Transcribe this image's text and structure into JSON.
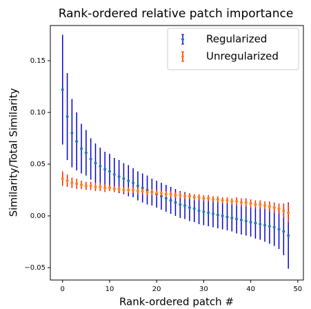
{
  "chart_data": {
    "type": "errorbar",
    "title": "Rank-ordered relative patch importance",
    "xlabel": "Rank-ordered patch #",
    "ylabel": "Similarity/Total Similarity",
    "x": [
      0,
      1,
      2,
      3,
      4,
      5,
      6,
      7,
      8,
      9,
      10,
      11,
      12,
      13,
      14,
      15,
      16,
      17,
      18,
      19,
      20,
      21,
      22,
      23,
      24,
      25,
      26,
      27,
      28,
      29,
      30,
      31,
      32,
      33,
      34,
      35,
      36,
      37,
      38,
      39,
      40,
      41,
      42,
      43,
      44,
      45,
      46,
      47,
      48
    ],
    "series": [
      {
        "name": "Regularized",
        "color": "#0000cc",
        "marker_color": "#1f77b4",
        "values": [
          0.122,
          0.096,
          0.08,
          0.072,
          0.065,
          0.061,
          0.055,
          0.051,
          0.048,
          0.045,
          0.043,
          0.04,
          0.038,
          0.036,
          0.034,
          0.032,
          0.029,
          0.027,
          0.025,
          0.023,
          0.021,
          0.019,
          0.017,
          0.015,
          0.013,
          0.011,
          0.01,
          0.008,
          0.007,
          0.005,
          0.004,
          0.003,
          0.002,
          0.001,
          0.0,
          -0.001,
          -0.002,
          -0.003,
          -0.004,
          -0.005,
          -0.006,
          -0.007,
          -0.008,
          -0.009,
          -0.01,
          -0.011,
          -0.013,
          -0.015,
          -0.019
        ],
        "errors": [
          0.053,
          0.042,
          0.033,
          0.028,
          0.024,
          0.022,
          0.02,
          0.019,
          0.018,
          0.017,
          0.017,
          0.016,
          0.016,
          0.015,
          0.015,
          0.014,
          0.014,
          0.014,
          0.014,
          0.013,
          0.013,
          0.013,
          0.013,
          0.013,
          0.013,
          0.013,
          0.013,
          0.013,
          0.013,
          0.013,
          0.013,
          0.013,
          0.013,
          0.013,
          0.013,
          0.013,
          0.013,
          0.014,
          0.014,
          0.014,
          0.014,
          0.015,
          0.015,
          0.016,
          0.017,
          0.018,
          0.019,
          0.023,
          0.032
        ]
      },
      {
        "name": "Unregularized",
        "color": "#ff2200",
        "marker_color": "#ff7f0e",
        "values": [
          0.036,
          0.034,
          0.032,
          0.031,
          0.03,
          0.029,
          0.029,
          0.028,
          0.028,
          0.027,
          0.027,
          0.026,
          0.026,
          0.025,
          0.025,
          0.025,
          0.024,
          0.024,
          0.023,
          0.023,
          0.022,
          0.022,
          0.021,
          0.021,
          0.02,
          0.02,
          0.019,
          0.019,
          0.018,
          0.018,
          0.017,
          0.017,
          0.016,
          0.016,
          0.015,
          0.015,
          0.014,
          0.014,
          0.013,
          0.013,
          0.012,
          0.011,
          0.011,
          0.01,
          0.009,
          0.008,
          0.007,
          0.005,
          0.003
        ],
        "errors": [
          0.007,
          0.006,
          0.005,
          0.005,
          0.004,
          0.004,
          0.004,
          0.004,
          0.004,
          0.004,
          0.003,
          0.003,
          0.003,
          0.003,
          0.003,
          0.003,
          0.003,
          0.003,
          0.003,
          0.003,
          0.003,
          0.003,
          0.003,
          0.003,
          0.003,
          0.003,
          0.003,
          0.003,
          0.003,
          0.003,
          0.003,
          0.003,
          0.003,
          0.003,
          0.003,
          0.003,
          0.003,
          0.004,
          0.004,
          0.004,
          0.004,
          0.004,
          0.004,
          0.004,
          0.005,
          0.005,
          0.005,
          0.007,
          0.009
        ]
      }
    ],
    "xlim": [
      -2.6,
      51.2
    ],
    "ylim": [
      -0.062,
      0.184
    ],
    "xticks": [
      0,
      10,
      20,
      30,
      40,
      50
    ],
    "yticks": [
      {
        "value": -0.05,
        "label": "−0.05"
      },
      {
        "value": 0,
        "label": "0.00"
      },
      0.05,
      {
        "value": 0.1,
        "label": "0.10"
      },
      0.15
    ],
    "legend": "upper right"
  }
}
